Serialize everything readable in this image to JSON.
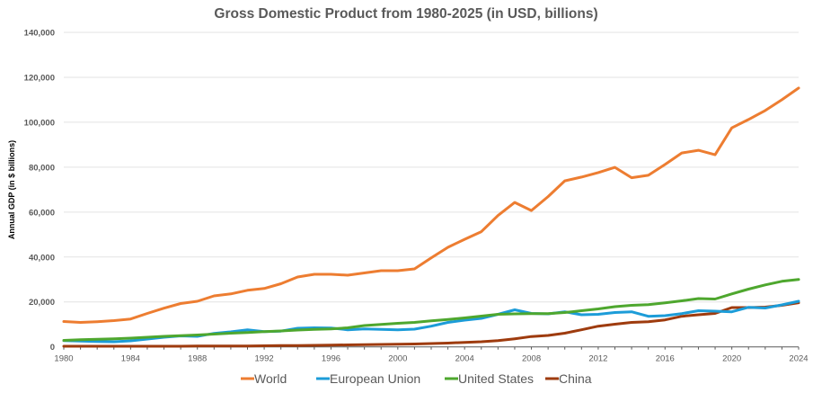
{
  "chart_data": {
    "type": "line",
    "title": "Gross Domestic Product from 1980-2025 (in USD, billions)",
    "xlabel": "",
    "ylabel": "Annual GDP (in $ billions)",
    "ylim": [
      0,
      140000
    ],
    "xlim": [
      1980,
      2024
    ],
    "grid": true,
    "legend_position": "bottom",
    "y_ticks": [
      "0",
      "20,000",
      "40,000",
      "60,000",
      "80,000",
      "100,000",
      "120,000",
      "140,000"
    ],
    "y_tick_values": [
      0,
      20000,
      40000,
      60000,
      80000,
      100000,
      120000,
      140000
    ],
    "x_tick_labels": [
      "1980",
      "1984",
      "1988",
      "1992",
      "1996",
      "2000",
      "2004",
      "2008",
      "2012",
      "2016",
      "2020",
      "2024"
    ],
    "x": [
      1980,
      1981,
      1982,
      1983,
      1984,
      1985,
      1986,
      1987,
      1988,
      1989,
      1990,
      1991,
      1992,
      1993,
      1994,
      1995,
      1996,
      1997,
      1998,
      1999,
      2000,
      2001,
      2002,
      2003,
      2004,
      2005,
      2006,
      2007,
      2008,
      2009,
      2010,
      2011,
      2012,
      2013,
      2014,
      2015,
      2016,
      2017,
      2018,
      2019,
      2020,
      2021,
      2022,
      2023,
      2024
    ],
    "series": [
      {
        "name": "World",
        "color": "#ED7D31",
        "values": [
          11300,
          10900,
          11200,
          11700,
          12400,
          14900,
          17200,
          19300,
          20300,
          22700,
          23600,
          25200,
          26000,
          28100,
          31100,
          32300,
          32300,
          31900,
          32900,
          33900,
          33900,
          34700,
          39600,
          44300,
          47900,
          51300,
          58500,
          64300,
          60700,
          66900,
          73900,
          75600,
          77600,
          79900,
          75300,
          76400,
          81200,
          86300,
          87500,
          85500,
          97500,
          101200,
          105200,
          110000,
          115200
        ]
      },
      {
        "name": "European Union",
        "color": "#1C9CD8",
        "values": [
          2800,
          2600,
          2400,
          2300,
          2700,
          3500,
          4300,
          4900,
          4700,
          6000,
          6700,
          7600,
          6800,
          7000,
          8300,
          8500,
          8400,
          7600,
          8000,
          7800,
          7600,
          7900,
          9200,
          10900,
          11900,
          12700,
          14500,
          16500,
          14900,
          14700,
          15600,
          14300,
          14500,
          15300,
          15600,
          13600,
          13900,
          14800,
          16100,
          15900,
          15600,
          17600,
          17300,
          18700,
          20300
        ]
      },
      {
        "name": "United States",
        "color": "#4EA72E",
        "values": [
          2900,
          3200,
          3400,
          3600,
          3900,
          4300,
          4700,
          5000,
          5300,
          5700,
          6100,
          6400,
          6800,
          7100,
          7500,
          7800,
          8000,
          8500,
          9500,
          10000,
          10500,
          10900,
          11600,
          12200,
          12900,
          13700,
          14500,
          14700,
          14800,
          14800,
          15300,
          16100,
          16900,
          17900,
          18500,
          18800,
          19600,
          20500,
          21500,
          21300,
          23600,
          25700,
          27600,
          29200,
          30000
        ]
      },
      {
        "name": "China",
        "color": "#9E3B0E",
        "values": [
          300,
          300,
          300,
          300,
          300,
          300,
          300,
          300,
          400,
          400,
          400,
          400,
          500,
          600,
          600,
          700,
          800,
          900,
          1000,
          1100,
          1200,
          1300,
          1500,
          1700,
          2000,
          2300,
          2750,
          3600,
          4600,
          5100,
          6100,
          7600,
          9200,
          10100,
          10900,
          11200,
          12000,
          13600,
          14300,
          14900,
          17500,
          17500,
          17700,
          18500,
          19600
        ]
      }
    ]
  }
}
